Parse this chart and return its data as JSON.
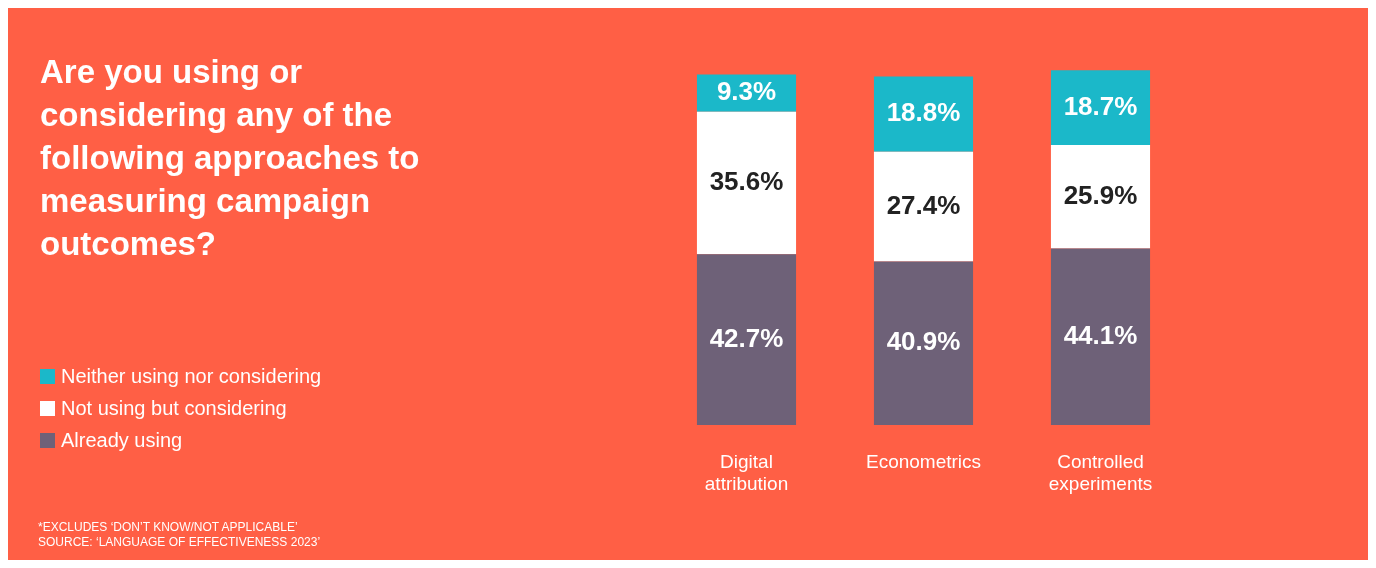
{
  "chart_data": {
    "type": "bar",
    "title": "Are you using or considering any of the following approaches to measuring campaign outcomes?",
    "categories": [
      "Digital attribution",
      "Econometrics",
      "Controlled experiments"
    ],
    "series": [
      {
        "name": "Already using",
        "color": "#6e6178",
        "values": [
          42.7,
          40.9,
          44.1
        ],
        "value_labels": [
          "42.7%",
          "40.9%",
          "44.1%"
        ]
      },
      {
        "name": "Not using but considering",
        "color": "#ffffff",
        "values": [
          35.6,
          27.4,
          25.9
        ],
        "value_labels": [
          "35.6%",
          "27.4%",
          "25.9%"
        ]
      },
      {
        "name": "Neither using nor considering",
        "color": "#1bb8c9",
        "values": [
          9.3,
          18.8,
          18.7
        ],
        "value_labels": [
          "9.3%",
          "18.8%",
          "18.7%"
        ]
      }
    ],
    "stacked": true,
    "tick_labels": "x",
    "grid": false,
    "legend": "left",
    "annotations": [
      "*EXCLUDES ‘DON’T KNOW/NOT APPLICABLE’",
      "SOURCE: ‘LANGUAGE OF EFFECTIVENESS 2023’"
    ]
  }
}
